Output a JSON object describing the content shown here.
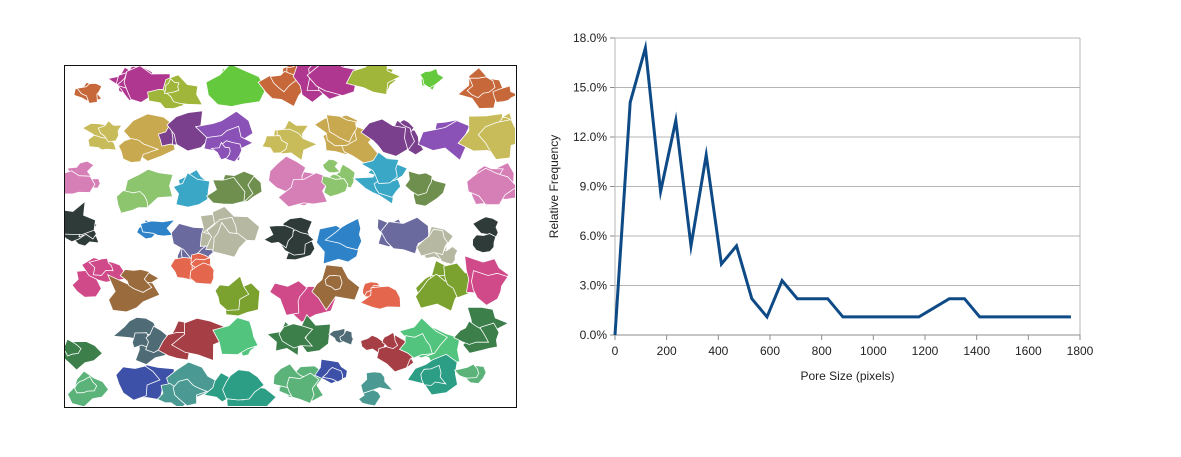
{
  "image_panel": {
    "description_icon": "segmented-pore-map",
    "pore_palette": [
      "#c7683a",
      "#4f6b76",
      "#2f3b39",
      "#8a51b6",
      "#5bb37a",
      "#7ba12f",
      "#3aa7c6",
      "#b0378f",
      "#a63f45",
      "#2e83c8",
      "#c8bb5a",
      "#3e51a8",
      "#d04a8a",
      "#6f8f4e",
      "#9fb63a",
      "#53c47d",
      "#6b6a9e",
      "#c9a94f",
      "#4a9a93",
      "#9a6b3d",
      "#d67fb7",
      "#65c93e",
      "#3c7f4a",
      "#b7b8a2",
      "#7a3f8d",
      "#2d9e86",
      "#e3664d",
      "#8dc56f"
    ]
  },
  "chart_data": {
    "type": "line",
    "x": [
      0,
      58.8,
      117.6,
      176.4,
      235.2,
      294.1,
      352.9,
      411.7,
      470.5,
      529.4,
      588.2,
      647,
      705.8,
      764.7,
      823.5,
      882.3,
      941.1,
      1000,
      1058.8,
      1117.6,
      1176.4,
      1235.2,
      1294.1,
      1352.9,
      1411.7,
      1470.5,
      1529.4,
      1588.2,
      1647,
      1705.8,
      1764.7
    ],
    "series": [
      {
        "values": [
          0,
          14.1,
          17.4,
          8.7,
          13.0,
          5.4,
          10.9,
          4.3,
          5.4,
          2.2,
          1.1,
          3.3,
          2.2,
          2.2,
          2.2,
          1.1,
          1.1,
          1.1,
          1.1,
          1.1,
          1.1,
          1.65,
          2.2,
          2.2,
          1.1,
          1.1,
          1.1,
          1.1,
          1.1,
          1.1,
          1.1
        ],
        "color": "#0d4a86"
      }
    ],
    "xlabel": "Pore Size (pixels)",
    "ylabel": "Relative Frequency",
    "xlim": [
      0,
      1800
    ],
    "ylim": [
      0,
      18
    ],
    "xticks": [
      0,
      200,
      400,
      600,
      800,
      1000,
      1200,
      1400,
      1600,
      1800
    ],
    "xtick_labels": [
      "0",
      "200",
      "400",
      "600",
      "800",
      "1000",
      "1200",
      "1400",
      "1600",
      "1800"
    ],
    "yticks": [
      0,
      3,
      6,
      9,
      12,
      15,
      18
    ],
    "ytick_labels": [
      "0.0%",
      "3.0%",
      "6.0%",
      "9.0%",
      "12.0%",
      "15.0%",
      "18.0%"
    ],
    "grid": "horizontal",
    "legend": "none",
    "colors": {
      "line": "#0d4a86",
      "grid": "#b4b4b4",
      "axis": "#8c8c8c",
      "frame": "#b4b4b4"
    }
  }
}
